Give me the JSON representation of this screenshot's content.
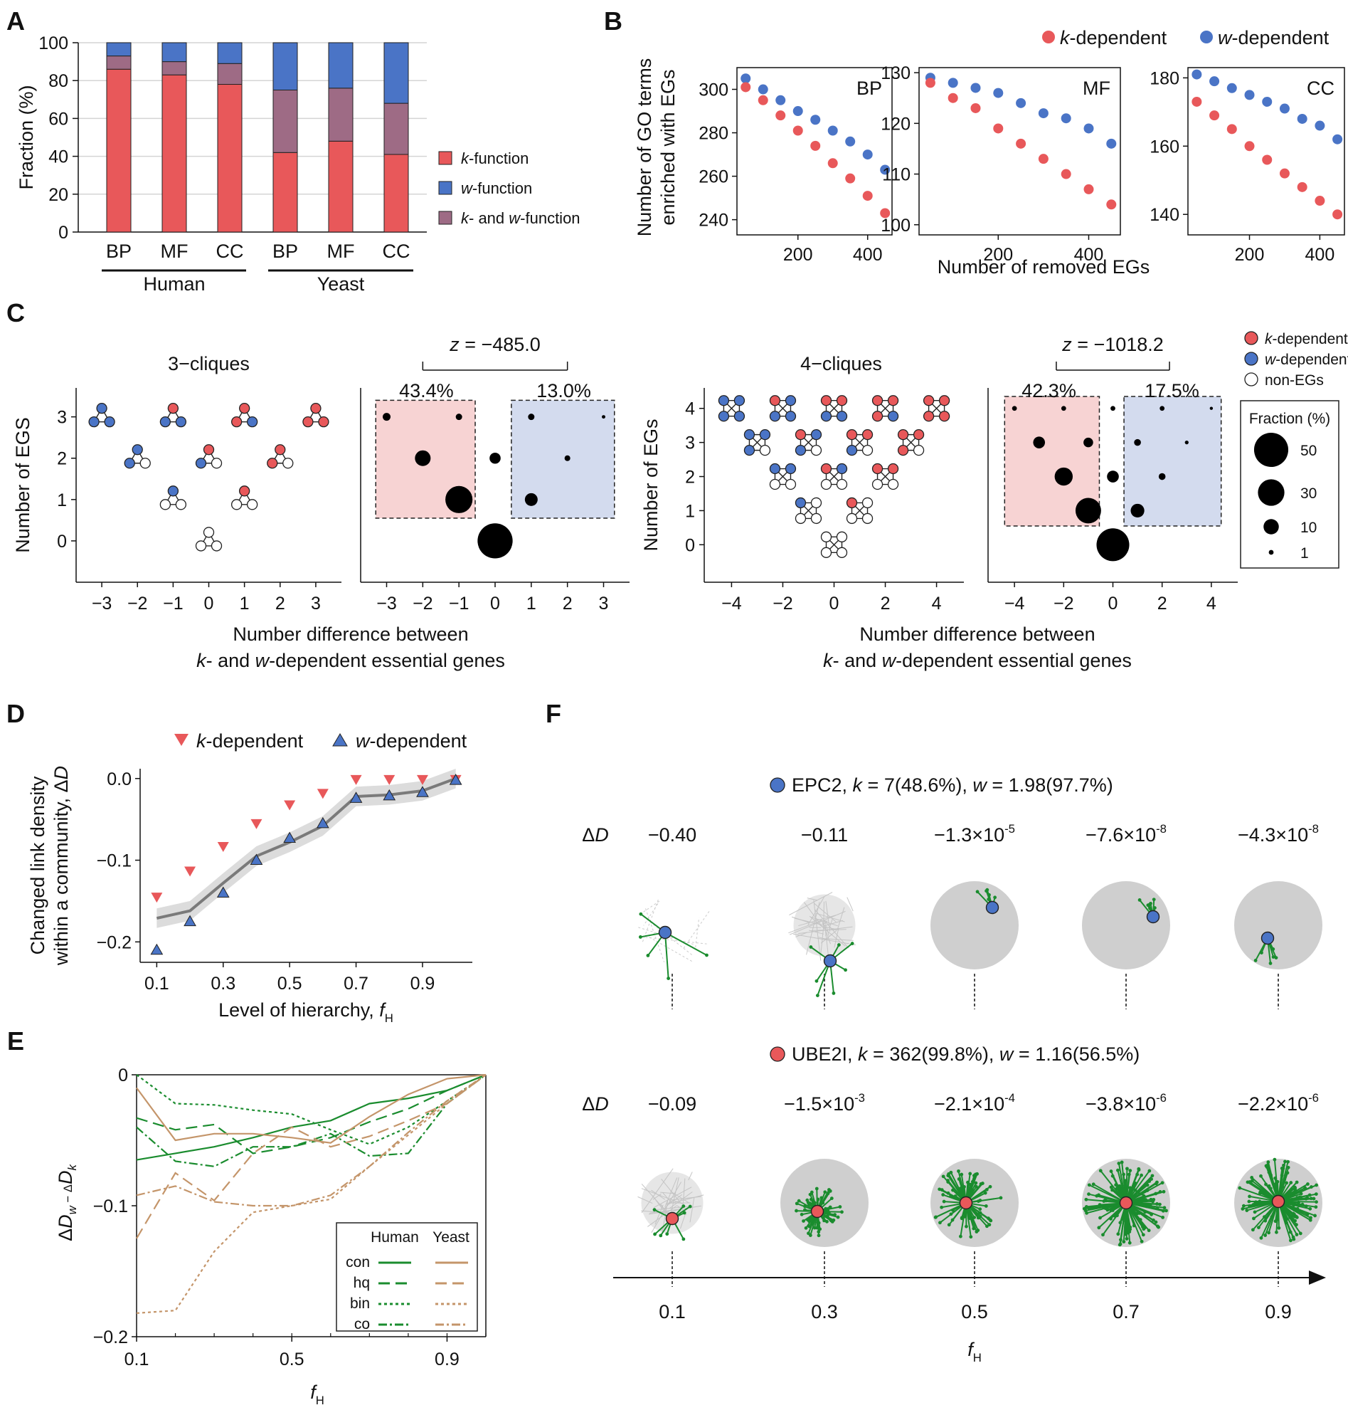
{
  "colors": {
    "k": "#e8585a",
    "w": "#4a74c6",
    "kw": "#9e6b85",
    "pinkbox": "#f7d3d3",
    "bluebox": "#d3dbee",
    "green": "#1a8c2e",
    "tan": "#c4956a",
    "grey": "#777777",
    "light": "#cfcfcf"
  },
  "panels": {
    "A": "A",
    "B": "B",
    "C": "C",
    "D": "D",
    "E": "E",
    "F": "F"
  },
  "chart_data": [
    {
      "id": "A",
      "type": "stacked_bar",
      "ylabel": "Fraction (%)",
      "ylim": [
        0,
        100
      ],
      "yticks": [
        0,
        20,
        40,
        60,
        80,
        100
      ],
      "categories": [
        "BP",
        "MF",
        "CC",
        "BP",
        "MF",
        "CC"
      ],
      "groups": [
        "Human",
        "Yeast"
      ],
      "series": [
        {
          "name": "k-function",
          "values": [
            86,
            83,
            78,
            42,
            48,
            41
          ]
        },
        {
          "name": "k- and w-function",
          "values": [
            7,
            7,
            11,
            33,
            28,
            27
          ]
        },
        {
          "name": "w-function",
          "values": [
            7,
            10,
            11,
            25,
            24,
            32
          ]
        }
      ],
      "legend": [
        {
          "pre": "k",
          "post": "-function"
        },
        {
          "pre": "w",
          "post": "-function"
        },
        {
          "pre1": "k",
          "mid": "- and ",
          "pre2": "w",
          "post": "-function"
        }
      ]
    },
    {
      "id": "B",
      "type": "scatter",
      "ylabel": [
        "Number of GO terms",
        "enriched with EGs"
      ],
      "xlabel": "Number of removed EGs",
      "legend": [
        "k-dependent",
        "w-dependent"
      ],
      "x": [
        50,
        100,
        150,
        200,
        250,
        300,
        350,
        400,
        450
      ],
      "subplots": [
        {
          "name": "BP",
          "xlim": [
            25,
            470
          ],
          "ylim": [
            233,
            310
          ],
          "yticks": [
            240,
            260,
            280,
            300
          ],
          "xticks": [
            200,
            400
          ],
          "k": [
            301,
            295,
            288,
            281,
            274,
            266,
            259,
            251,
            243
          ],
          "w": [
            305,
            300,
            295,
            290,
            286,
            281,
            276,
            270,
            263
          ]
        },
        {
          "name": "MF",
          "xlim": [
            25,
            470
          ],
          "ylim": [
            98,
            131
          ],
          "yticks": [
            100,
            110,
            120,
            130
          ],
          "xticks": [
            200,
            400
          ],
          "k": [
            128,
            125,
            123,
            119,
            116,
            113,
            110,
            107,
            104
          ],
          "w": [
            129,
            128,
            127,
            126,
            124,
            122,
            121,
            119,
            116
          ]
        },
        {
          "name": "CC",
          "xlim": [
            25,
            470
          ],
          "ylim": [
            134,
            183
          ],
          "yticks": [
            140,
            160,
            180
          ],
          "xticks": [
            200,
            400
          ],
          "k": [
            173,
            169,
            165,
            160,
            156,
            152,
            148,
            144,
            140
          ],
          "w": [
            181,
            179,
            177,
            175,
            173,
            171,
            168,
            166,
            162
          ]
        }
      ]
    },
    {
      "id": "C",
      "type": "bubble",
      "xlabel": [
        "Number difference between",
        "k- and w-dependent essential genes"
      ],
      "legend": [
        "k-dependent",
        "w-dependent",
        "non-EGs"
      ],
      "size_legend": {
        "title": "Fraction (%)",
        "values": [
          50,
          30,
          10,
          1
        ]
      },
      "three": {
        "title": "3−cliques",
        "ylabel": "Number of EGS",
        "z": "z = −485.0",
        "left_pct": "43.4%",
        "right_pct": "13.0%",
        "xticks": [
          -3,
          -2,
          -1,
          0,
          1,
          2,
          3
        ],
        "yticks": [
          0,
          1,
          2,
          3
        ],
        "points": [
          {
            "x": -3,
            "y": 3,
            "s": 1.5
          },
          {
            "x": -1,
            "y": 3,
            "s": 1
          },
          {
            "x": -2,
            "y": 2,
            "s": 6
          },
          {
            "x": -1,
            "y": 1,
            "s": 18
          },
          {
            "x": 0,
            "y": 2,
            "s": 3
          },
          {
            "x": 0,
            "y": 0,
            "s": 30
          },
          {
            "x": 1,
            "y": 3,
            "s": 1
          },
          {
            "x": 3,
            "y": 3,
            "s": 0.3
          },
          {
            "x": 2,
            "y": 2,
            "s": 0.8
          },
          {
            "x": 1,
            "y": 1,
            "s": 4
          }
        ]
      },
      "four": {
        "title": "4−cliques",
        "ylabel": "Number of EGs",
        "z": "z = −1018.2",
        "left_pct": "42.3%",
        "right_pct": "17.5%",
        "xticks": [
          -4,
          -2,
          0,
          2,
          4
        ],
        "yticks": [
          0,
          1,
          2,
          3,
          4
        ],
        "points": [
          {
            "x": -4,
            "y": 4,
            "s": 0.5
          },
          {
            "x": -2,
            "y": 4,
            "s": 0.5
          },
          {
            "x": 0,
            "y": 4,
            "s": 0.5
          },
          {
            "x": 2,
            "y": 4,
            "s": 0.5
          },
          {
            "x": 4,
            "y": 4,
            "s": 0.2
          },
          {
            "x": -3,
            "y": 3,
            "s": 3
          },
          {
            "x": -1,
            "y": 3,
            "s": 2
          },
          {
            "x": 1,
            "y": 3,
            "s": 1
          },
          {
            "x": 3,
            "y": 3,
            "s": 0.3
          },
          {
            "x": -2,
            "y": 2,
            "s": 7
          },
          {
            "x": 0,
            "y": 2,
            "s": 3
          },
          {
            "x": 2,
            "y": 2,
            "s": 1
          },
          {
            "x": -1,
            "y": 1,
            "s": 14
          },
          {
            "x": 1,
            "y": 1,
            "s": 4
          },
          {
            "x": 0,
            "y": 0,
            "s": 23
          }
        ]
      }
    },
    {
      "id": "D",
      "type": "scatter_line",
      "ylabel": [
        "Changed link density",
        "within a community, ΔD"
      ],
      "xlabel": "Level of hierarchy, f",
      "xticks": [
        0.1,
        0.3,
        0.5,
        0.7,
        0.9
      ],
      "yticks": [
        0.0,
        -0.1,
        -0.2
      ],
      "xlim": [
        0.05,
        1.05
      ],
      "ylim": [
        -0.225,
        0.012
      ],
      "legend": [
        "k-dependent",
        "w-dependent"
      ],
      "x": [
        0.1,
        0.2,
        0.3,
        0.4,
        0.5,
        0.6,
        0.7,
        0.8,
        0.9,
        1.0
      ],
      "k": [
        -0.145,
        -0.113,
        -0.083,
        -0.055,
        -0.032,
        -0.018,
        -0.001,
        -0.001,
        -0.001,
        -0.001
      ],
      "w": [
        -0.21,
        -0.175,
        -0.14,
        -0.1,
        -0.073,
        -0.055,
        -0.024,
        -0.021,
        -0.017,
        -0.002
      ],
      "mean_x": [
        0.1,
        0.2,
        0.3,
        0.4,
        0.5,
        0.6,
        0.7,
        0.8,
        0.9,
        1.0
      ],
      "mean": [
        -0.171,
        -0.162,
        -0.128,
        -0.095,
        -0.078,
        -0.058,
        -0.022,
        -0.02,
        -0.015,
        0.0
      ]
    },
    {
      "id": "E",
      "type": "line",
      "ylabel": "ΔD_w − ΔD_k",
      "xlabel": "f",
      "xticks": [
        0.1,
        0.5,
        0.9
      ],
      "yticks": [
        0,
        -0.1,
        -0.2
      ],
      "xlim": [
        0.1,
        1.0
      ],
      "ylim": [
        -0.2,
        0
      ],
      "legend_cols": [
        "Human",
        "Yeast"
      ],
      "legend_rows": [
        "con",
        "hq",
        "bin",
        "co"
      ],
      "x": [
        0.1,
        0.2,
        0.3,
        0.4,
        0.5,
        0.6,
        0.7,
        0.8,
        0.9,
        1.0
      ],
      "series": [
        {
          "name": "Human con",
          "values": [
            -0.065,
            -0.06,
            -0.055,
            -0.048,
            -0.04,
            -0.035,
            -0.022,
            -0.018,
            -0.012,
            0.0
          ]
        },
        {
          "name": "Human hq",
          "values": [
            -0.033,
            -0.042,
            -0.038,
            -0.06,
            -0.055,
            -0.048,
            -0.036,
            -0.026,
            -0.012,
            0.0
          ]
        },
        {
          "name": "Human bin",
          "values": [
            0.0,
            -0.022,
            -0.023,
            -0.027,
            -0.03,
            -0.042,
            -0.053,
            -0.04,
            -0.02,
            0.0
          ]
        },
        {
          "name": "Human co",
          "values": [
            -0.04,
            -0.066,
            -0.07,
            -0.055,
            -0.055,
            -0.045,
            -0.062,
            -0.06,
            -0.022,
            0.0
          ]
        },
        {
          "name": "Yeast con",
          "values": [
            -0.01,
            -0.05,
            -0.045,
            -0.045,
            -0.048,
            -0.052,
            -0.032,
            -0.015,
            -0.003,
            0.0
          ]
        },
        {
          "name": "Yeast hq",
          "values": [
            -0.125,
            -0.075,
            -0.096,
            -0.06,
            -0.04,
            -0.055,
            -0.047,
            -0.035,
            -0.022,
            0.0
          ]
        },
        {
          "name": "Yeast bin",
          "values": [
            -0.182,
            -0.18,
            -0.135,
            -0.105,
            -0.1,
            -0.095,
            -0.07,
            -0.046,
            -0.022,
            0.0
          ]
        },
        {
          "name": "Yeast co",
          "values": [
            -0.092,
            -0.085,
            -0.097,
            -0.1,
            -0.1,
            -0.092,
            -0.07,
            -0.044,
            -0.02,
            0.0
          ]
        }
      ]
    },
    {
      "id": "F",
      "type": "network_panels",
      "delta_label": "ΔD",
      "xlabel": "f",
      "fh": [
        "0.1",
        "0.3",
        "0.5",
        "0.7",
        "0.9"
      ],
      "rows": [
        {
          "gene": "EPC2",
          "k": "7",
          "kpct": "48.6%",
          "w": "1.98",
          "wpct": "97.7%",
          "kind": "w",
          "dd": [
            {
              "m": "−0.40",
              "e": ""
            },
            {
              "m": "−0.11",
              "e": ""
            },
            {
              "m": "−1.3×10",
              "e": "-5"
            },
            {
              "m": "−7.6×10",
              "e": "-8"
            },
            {
              "m": "−4.3×10",
              "e": "-8"
            }
          ]
        },
        {
          "gene": "UBE2I",
          "k": "362",
          "kpct": "99.8%",
          "w": "1.16",
          "wpct": "56.5%",
          "kind": "k",
          "dd": [
            {
              "m": "−0.09",
              "e": ""
            },
            {
              "m": "−1.5×10",
              "e": "-3"
            },
            {
              "m": "−2.1×10",
              "e": "-4"
            },
            {
              "m": "−3.8×10",
              "e": "-6"
            },
            {
              "m": "−2.2×10",
              "e": "-6"
            }
          ]
        }
      ]
    }
  ]
}
